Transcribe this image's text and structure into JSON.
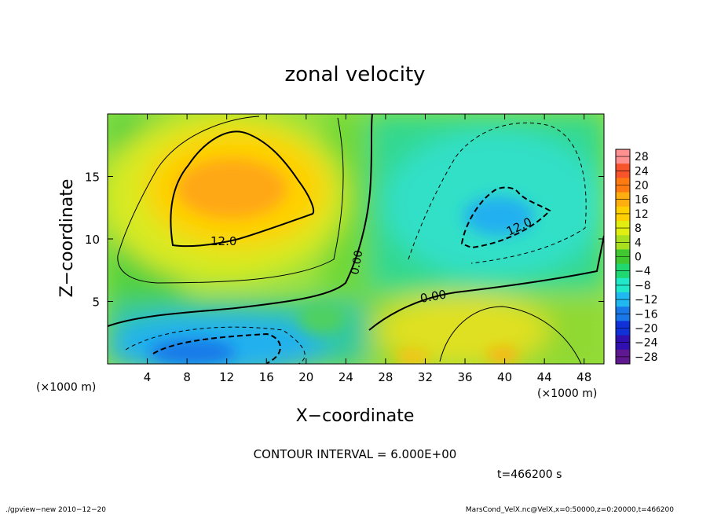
{
  "chart_data": {
    "type": "heatmap",
    "title": "zonal velocity",
    "xlabel": "X−coordinate",
    "ylabel": "Z−coordinate",
    "x_unit": "(×1000 m)",
    "x_unit_right": "(×1000 m)",
    "xlim": [
      0,
      50
    ],
    "ylim": [
      0,
      20
    ],
    "x_ticks": [
      "4",
      "8",
      "12",
      "16",
      "20",
      "24",
      "28",
      "32",
      "36",
      "40",
      "44",
      "48"
    ],
    "y_ticks": [
      "5",
      "10",
      "15"
    ],
    "colorbar_levels": [
      "28",
      "24",
      "20",
      "16",
      "12",
      "8",
      "4",
      "0",
      "−4",
      "−8",
      "−12",
      "−16",
      "−20",
      "−24",
      "−28"
    ],
    "colorbar_colors": [
      "#ff9090",
      "#f8542c",
      "#ff7a10",
      "#ffae10",
      "#ffd000",
      "#e2ee10",
      "#a8e020",
      "#40c830",
      "#20d870",
      "#20e8c8",
      "#20b8f0",
      "#1878e8",
      "#1030d8",
      "#3010b0",
      "#601890"
    ],
    "contour_labels": [
      "12.0",
      "0.00",
      "12.0",
      "0.00"
    ],
    "contour_interval": "CONTOUR INTERVAL = 6.000E+00",
    "time": "t=466200 s",
    "grid": false
  },
  "footer": {
    "left": "./gpview−new  2010−12−20",
    "right": "MarsCond_VelX.nc@VelX,x=0:50000,z=0:20000,t=466200"
  }
}
